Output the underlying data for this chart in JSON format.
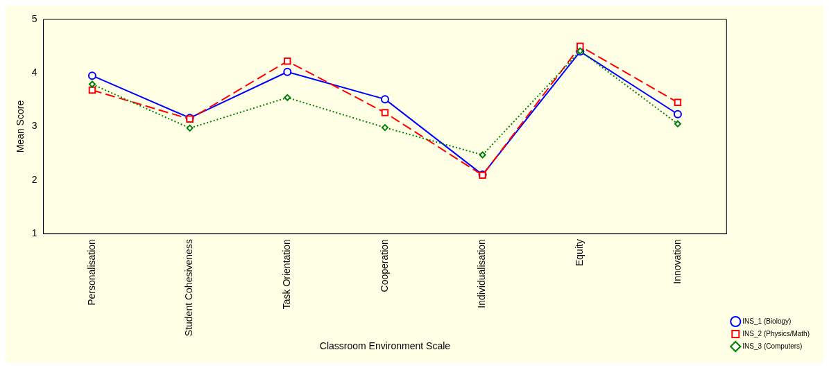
{
  "chart_data": {
    "type": "line",
    "xlabel": "Classroom Environment Scale",
    "ylabel": "Mean Score",
    "categories": [
      "Personalisation",
      "Student Cohesiveness",
      "Task Orientation",
      "Cooperation",
      "Individualisation",
      "Equity",
      "Innovation"
    ],
    "ylim": [
      1,
      5
    ],
    "yticks": [
      1,
      2,
      3,
      4,
      5
    ],
    "grid": false,
    "legend": "bottom right",
    "series": [
      {
        "name": "INS_1 (Biology)",
        "color": "#0000ff",
        "values": [
          3.95,
          3.16,
          4.02,
          3.51,
          2.1,
          4.4,
          3.23
        ],
        "marker": "circle",
        "line_style": "solid"
      },
      {
        "name": "INS_2 (Physics/Math)",
        "color": "#ff0000",
        "values": [
          3.68,
          3.14,
          4.22,
          3.26,
          2.09,
          4.5,
          3.45
        ],
        "marker": "square",
        "line_style": "dashed"
      },
      {
        "name": "INS_3 (Computers)",
        "color": "#008000",
        "values": [
          3.79,
          2.97,
          3.54,
          2.98,
          2.47,
          4.41,
          3.05
        ],
        "marker": "diamond",
        "line_style": "dotted"
      }
    ]
  }
}
